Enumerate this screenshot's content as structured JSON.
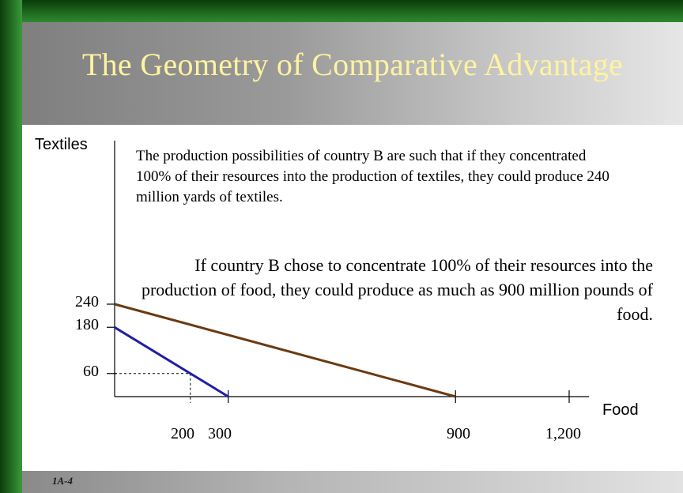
{
  "title": "The Geometry of Comparative Advantage",
  "slide_number": "1A-4",
  "paragraph_1": "The production possibilities of country B are such that if they concentrated 100% of their resources into the production of textiles, they could produce 240 million yards of textiles.",
  "paragraph_2": "If country B chose to concentrate 100% of their resources into the production of food, they could produce as much as 900 million pounds of food.",
  "colors": {
    "frame_green": "#1a7a1a",
    "title_text": "#fff3a0",
    "country_b_line": "#6b3a10",
    "country_a_line": "#1f1fa8"
  },
  "chart_data": {
    "type": "line",
    "xlabel": "Food",
    "ylabel": "Textiles",
    "x_ticks": [
      200,
      300,
      900,
      1200
    ],
    "x_tick_labels": [
      "200",
      "300",
      "900",
      "1,200"
    ],
    "y_ticks": [
      60,
      180,
      240
    ],
    "y_tick_labels": [
      "60",
      "180",
      "240"
    ],
    "xlim": [
      0,
      1250
    ],
    "ylim": [
      0,
      240
    ],
    "series": [
      {
        "points": [
          [
            0,
            240
          ],
          [
            900,
            0
          ]
        ],
        "color": "#6b3a10"
      },
      {
        "points": [
          [
            0,
            180
          ],
          [
            300,
            0
          ]
        ],
        "color": "#1f1fa8"
      }
    ],
    "reference_point": {
      "x": 200,
      "y": 60
    }
  }
}
